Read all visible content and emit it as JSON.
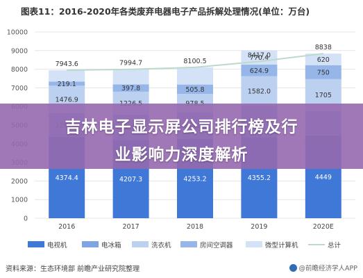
{
  "chart_data": {
    "type": "bar",
    "stacked": true,
    "title": "图表11：2016-2020年各类废弃电器电子产品拆解处理情况(单位：万台)",
    "categories": [
      "2016",
      "2017",
      "2018",
      "2019",
      "2020E"
    ],
    "yticks": [
      "0",
      "1000",
      "2000",
      "3000",
      "4000",
      "5000",
      "6000",
      "7000",
      "8000",
      "9000",
      "10000"
    ],
    "ylim": [
      0,
      10000
    ],
    "grid": true,
    "legend_position": "bottom",
    "series": [
      {
        "name": "电视机",
        "color": "#3f78d6",
        "values": [
          4374.4,
          4207.3,
          4253.2,
          4355.2,
          4449
        ],
        "labels": [
          "4374.4",
          "4207.3",
          "4253.2",
          "4355.2",
          "4449"
        ]
      },
      {
        "name": "电冰箱",
        "color": "#7ea4e4",
        "values": [
          1262.9,
          1359.4,
          1441.2,
          1683.5,
          1314
        ],
        "labels": [
          "1262.9",
          "1359.4",
          "1441.2",
          "",
          ""
        ]
      },
      {
        "name": "洗衣机",
        "color": "#bcd0f0",
        "values": [
          1476.9,
          1226.5,
          978.5,
          1582.0,
          1705
        ],
        "labels": [
          "1476.9",
          "1226.5",
          "978.5",
          "1582.0",
          "1705"
        ]
      },
      {
        "name": "房间空调器",
        "color": "#96b6ea",
        "values": [
          219.1,
          397.8,
          505.8,
          624.9,
          750
        ],
        "labels": [
          "219.1",
          "397.8",
          "505.8",
          "624.9",
          "750"
        ]
      },
      {
        "name": "微型计算机",
        "color": "#d4e2f7",
        "values": [
          610.3,
          803.7,
          921.8,
          770.4,
          620
        ],
        "labels": [
          "",
          "",
          "",
          "770.4",
          "620"
        ]
      }
    ],
    "total": {
      "name": "总计",
      "color": "#bcd9cc",
      "values": [
        7943.6,
        7994.7,
        8100.5,
        8417.0,
        8838
      ],
      "labels": [
        "7943.6",
        "7994.7",
        "8100.5",
        "8417.0",
        "8838"
      ]
    }
  },
  "banner": {
    "line1": "吉林电子显示屏公司排行榜及行",
    "line2": "业影响力深度解析"
  },
  "footer": {
    "source": "资料来源：生态环境部 前瞻产业研究院整理",
    "brand": "@前瞻经济学人APP"
  }
}
